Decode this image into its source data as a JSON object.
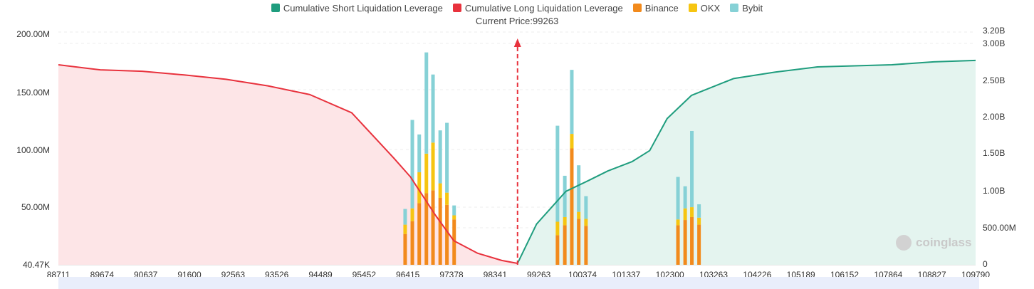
{
  "legend": [
    {
      "label": "Cumulative Short Liquidation Leverage",
      "color": "#1f9d7e"
    },
    {
      "label": "Cumulative Long Liquidation Leverage",
      "color": "#e8323d"
    },
    {
      "label": "Binance",
      "color": "#f28a1c"
    },
    {
      "label": "OKX",
      "color": "#f6c511"
    },
    {
      "label": "Bybit",
      "color": "#86d1d6"
    }
  ],
  "current_price_label": "Current Price:99263",
  "watermark": "coinglass",
  "colors": {
    "short_line": "#1f9d7e",
    "short_fill": "#e4f4ef",
    "long_line": "#e8323d",
    "long_fill": "#fde5e7",
    "binance": "#f28a1c",
    "okx": "#f6c511",
    "bybit": "#86d1d6",
    "marker": "#e8323d"
  },
  "chart_data": {
    "type": "bar",
    "x_tick_labels": [
      "88711",
      "89674",
      "90637",
      "91600",
      "92563",
      "93526",
      "94489",
      "95452",
      "96415",
      "97378",
      "98341",
      "99263",
      "100374",
      "101337",
      "102300",
      "103263",
      "104226",
      "105189",
      "106152",
      "107864",
      "108827",
      "109790"
    ],
    "y_left_tick_labels": [
      "200.00M",
      "150.00M",
      "100.00M",
      "50.00M",
      "40.47K"
    ],
    "y_right_tick_labels": [
      "3.20B",
      "3.00B",
      "2.50B",
      "2.00B",
      "1.50B",
      "1.00B",
      "500.00M",
      "0"
    ],
    "x_range": [
      88711,
      109790
    ],
    "y_left_range": [
      0,
      200000000
    ],
    "y_right_range": [
      0,
      3200000000
    ],
    "current_price": 99263,
    "series": [
      {
        "name": "Binance",
        "axis": "left",
        "x": [
          96680,
          96845,
          97004,
          97168,
          97320,
          97486,
          97640,
          97806,
          100181,
          100349,
          100510,
          100669,
          100836,
          102950,
          103115,
          103269,
          103434
        ],
        "values": [
          26500000,
          37500000,
          53000000,
          61500000,
          64000000,
          57500000,
          51500000,
          39000000,
          25500000,
          34000000,
          100000000,
          39500000,
          33500000,
          34000000,
          38500000,
          41000000,
          34500000
        ]
      },
      {
        "name": "OKX",
        "axis": "left",
        "x": [
          96680,
          96845,
          97004,
          97168,
          97320,
          97486,
          97640,
          97806,
          100181,
          100349,
          100510,
          100669,
          100836,
          102950,
          103115,
          103269,
          103434
        ],
        "values": [
          8000000,
          11000000,
          26500000,
          34000000,
          41000000,
          12500000,
          10500000,
          3500000,
          11500000,
          7000000,
          12500000,
          6000000,
          6000000,
          5000000,
          10000000,
          8500000,
          6000000
        ]
      },
      {
        "name": "Bybit",
        "axis": "left",
        "x": [
          96680,
          96845,
          97004,
          97168,
          97320,
          97486,
          97640,
          97806,
          100181,
          100349,
          100510,
          100669,
          100836,
          102950,
          103115,
          103269,
          103434
        ],
        "values": [
          13500000,
          76000000,
          32500000,
          87000000,
          58500000,
          45500000,
          60000000,
          8500000,
          82500000,
          35500000,
          55000000,
          40000000,
          19500000,
          36500000,
          19000000,
          65500000,
          11500000
        ]
      },
      {
        "name": "Cumulative Long Liquidation Leverage",
        "axis": "right",
        "x": [
          88711,
          89674,
          90637,
          91600,
          92563,
          93526,
          94489,
          95452,
          96415,
          96800,
          97378,
          97800,
          98341,
          98900,
          99263
        ],
        "values": [
          2750000000,
          2680000000,
          2660000000,
          2610000000,
          2550000000,
          2460000000,
          2340000000,
          2090000000,
          1470000000,
          1210000000,
          680000000,
          330000000,
          160000000,
          60000000,
          20000000
        ]
      },
      {
        "name": "Cumulative Short Liquidation Leverage",
        "axis": "right",
        "x": [
          99263,
          99700,
          100374,
          100900,
          101337,
          101900,
          102300,
          102700,
          103263,
          104226,
          105189,
          106152,
          107864,
          108827,
          109790
        ],
        "values": [
          20000000,
          560000000,
          1010000000,
          1160000000,
          1290000000,
          1420000000,
          1570000000,
          2010000000,
          2330000000,
          2560000000,
          2650000000,
          2720000000,
          2750000000,
          2790000000,
          2810000000
        ]
      }
    ]
  }
}
